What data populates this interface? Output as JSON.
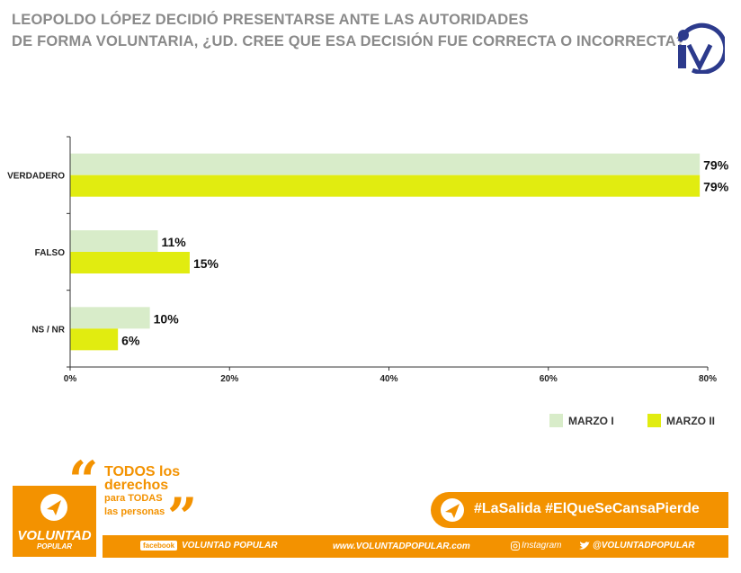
{
  "header": {
    "title_line1": "LEOPOLDO LÓPEZ DECIDIÓ PRESENTARSE ANTE LAS AUTORIDADES",
    "title_line2": "DE FORMA VOLUNTARIA, ¿UD. CREE QUE ESA DECISIÓN FUE CORRECTA O INCORRECTA?"
  },
  "colors": {
    "series1": "#d8ecc9",
    "series2": "#e1ec10",
    "accent": "#f39200",
    "logo_blue": "#2c3a8c"
  },
  "chart_data": {
    "type": "bar",
    "orientation": "horizontal",
    "categories": [
      "VERDADERO",
      "FALSO",
      "NS / NR"
    ],
    "series": [
      {
        "name": "MARZO I",
        "values": [
          79,
          11,
          10
        ]
      },
      {
        "name": "MARZO II",
        "values": [
          79,
          15,
          6
        ]
      }
    ],
    "value_labels": [
      [
        "79%",
        "11%",
        "10%"
      ],
      [
        "79%",
        "15%",
        "6%"
      ]
    ],
    "xlim": [
      0,
      80
    ],
    "xticks": [
      "0%",
      "20%",
      "40%",
      "60%",
      "80%"
    ],
    "xtick_values": [
      0,
      20,
      40,
      60,
      80
    ],
    "grid": false,
    "legend_position": "bottom-right"
  },
  "footer": {
    "slogan_line1": "TODOS los",
    "slogan_line2": "derechos",
    "slogan_line3": "para TODAS",
    "slogan_line4": "las personas",
    "brand_name": "VOLUNTAD",
    "brand_sub": "POPULAR",
    "hashtags": "#LaSalida #ElQueSeCansaPierde",
    "facebook_badge": "facebook",
    "facebook_name": "VOLUNTAD POPULAR",
    "website": "www.VOLUNTADPOPULAR.com",
    "instagram": "Instagram",
    "twitter_handle": "@VOLUNTADPOPULAR"
  }
}
